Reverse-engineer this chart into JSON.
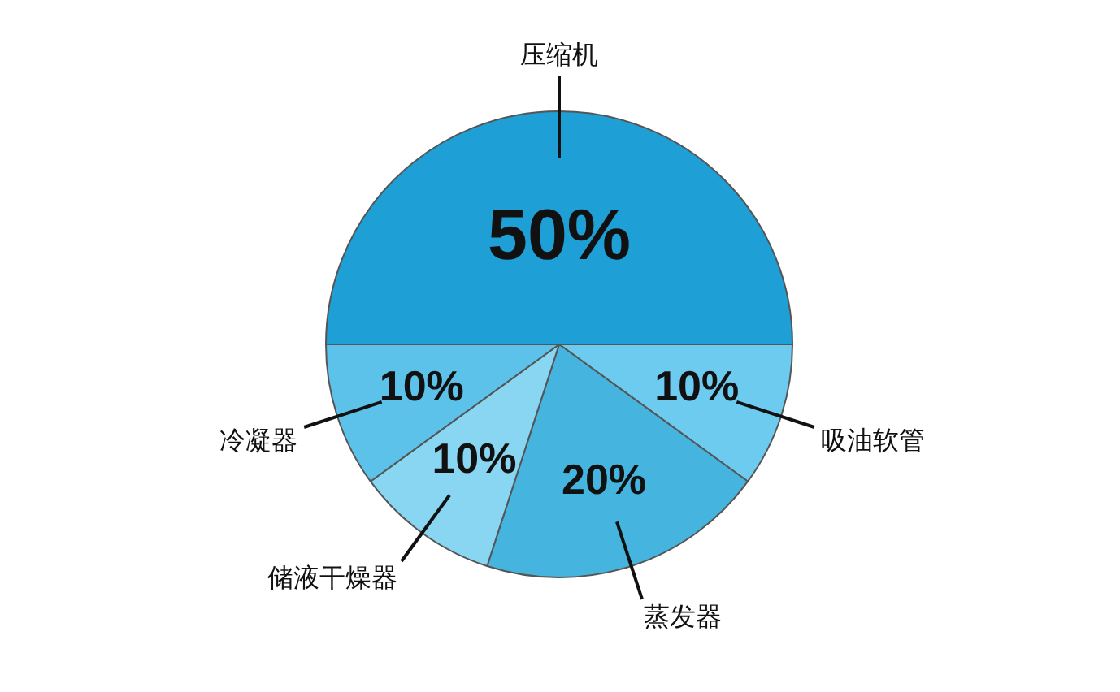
{
  "chart_data": {
    "type": "pie",
    "categories": [
      "压缩机",
      "吸油软管",
      "蒸发器",
      "储液干燥器",
      "冷凝器"
    ],
    "values": [
      50,
      10,
      20,
      10,
      10
    ],
    "colors": [
      "#1e9fd5",
      "#6ccbee",
      "#45b5e0",
      "#88d6f2",
      "#5cc2e9"
    ],
    "value_labels": [
      "50%",
      "10%",
      "20%",
      "10%",
      "10%"
    ],
    "legend": false
  }
}
